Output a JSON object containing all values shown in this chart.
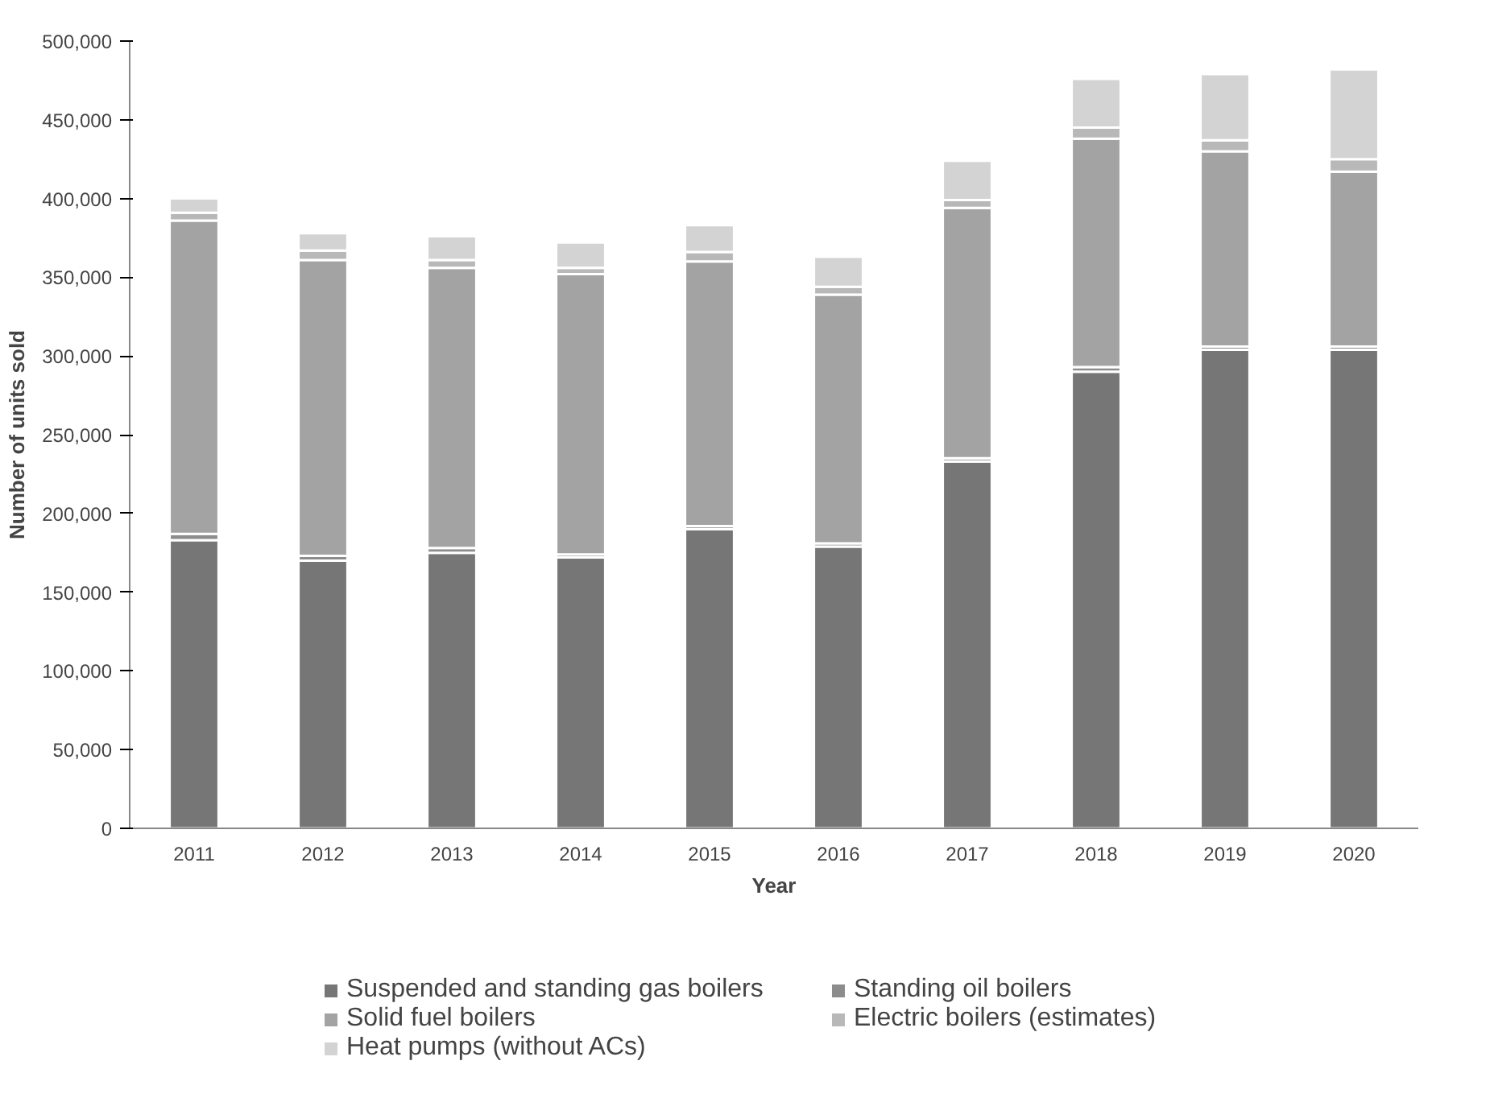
{
  "chart_data": {
    "type": "bar",
    "stacked": true,
    "xlabel": "Year",
    "ylabel": "Number of units sold",
    "categories": [
      "2011",
      "2012",
      "2013",
      "2014",
      "2015",
      "2016",
      "2017",
      "2018",
      "2019",
      "2020"
    ],
    "series": [
      {
        "name": "Suspended and standing gas boilers",
        "color": "#767676",
        "values": [
          183000,
          170000,
          175000,
          172000,
          190000,
          179000,
          233000,
          290000,
          304000,
          304000
        ]
      },
      {
        "name": "Standing oil boilers",
        "color": "#8c8c8c",
        "values": [
          4000,
          3000,
          3000,
          2000,
          2000,
          2000,
          2000,
          3000,
          2000,
          2000
        ]
      },
      {
        "name": "Solid fuel boilers",
        "color": "#a3a3a3",
        "values": [
          199000,
          188000,
          178000,
          178000,
          168000,
          158000,
          159000,
          145000,
          124000,
          111000
        ]
      },
      {
        "name": "Electric boilers (estimates)",
        "color": "#b8b8b8",
        "values": [
          5000,
          6000,
          5000,
          4000,
          6000,
          5000,
          5000,
          7000,
          7000,
          8000
        ]
      },
      {
        "name": "Heat pumps (without ACs)",
        "color": "#d3d3d3",
        "values": [
          9000,
          11000,
          15000,
          16000,
          17000,
          19000,
          25000,
          31000,
          42000,
          57000
        ]
      }
    ],
    "ylim": [
      0,
      500000
    ],
    "yticks": [
      {
        "value": 0,
        "label": "0"
      },
      {
        "value": 50000,
        "label": "50,000"
      },
      {
        "value": 100000,
        "label": "100,000"
      },
      {
        "value": 150000,
        "label": "150,000"
      },
      {
        "value": 200000,
        "label": "200,000"
      },
      {
        "value": 250000,
        "label": "250,000"
      },
      {
        "value": 300000,
        "label": "300,000"
      },
      {
        "value": 350000,
        "label": "350,000"
      },
      {
        "value": 400000,
        "label": "400,000"
      },
      {
        "value": 450000,
        "label": "450,000"
      },
      {
        "value": 500000,
        "label": "500,000"
      }
    ],
    "grid": false,
    "legend": "bottom"
  }
}
